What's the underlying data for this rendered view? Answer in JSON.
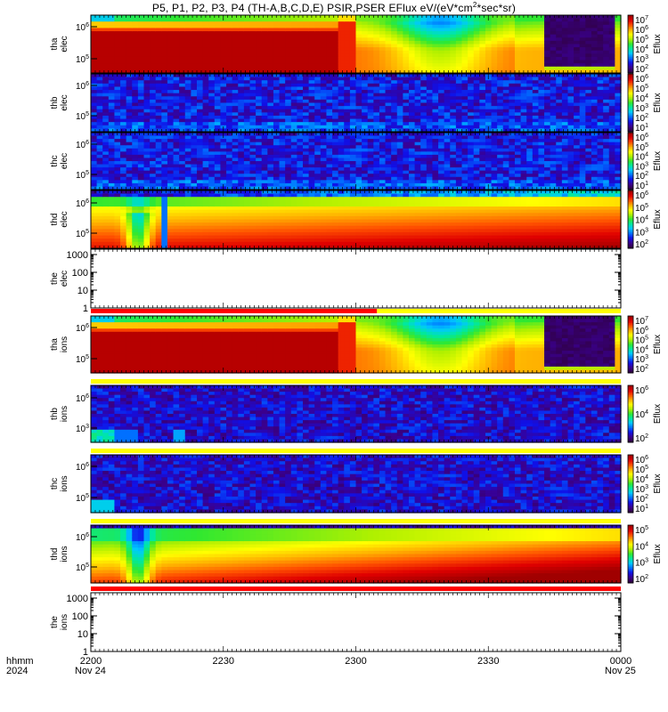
{
  "title": {
    "prefix": "P5, P1, P2, P3, P4 (TH-A,B,C,D,E) PSIR,PSER EFlux eV/(eV*cm",
    "sup": "2",
    "suffix": "*sec*sr)"
  },
  "footer": {
    "label_line1": "hhmm",
    "label_line2": "2024",
    "ticks": [
      "2200",
      "2230",
      "2300",
      "2330",
      "0000"
    ],
    "dates": [
      "Nov 24",
      "Nov 25"
    ]
  },
  "colors": {
    "spectrogram_scale": [
      "#300040",
      "#3a0090",
      "#1010e8",
      "#0070ff",
      "#00c8ff",
      "#00e8a0",
      "#30e830",
      "#b0f000",
      "#ffff00",
      "#ffb000",
      "#ff5000",
      "#e00000",
      "#a00000"
    ],
    "quality_flag_red": "#ff0000",
    "quality_flag_yellow": "#ffff00"
  },
  "chart_data": [
    {
      "type": "heatmap",
      "probe": "tha",
      "species": "elec",
      "ylabel": [
        "tha",
        "elec"
      ],
      "ytick_labels": [
        "10^6",
        "10^5"
      ],
      "ylog": true,
      "colorbar_label": "Eflux",
      "colorbar_ticks": [
        "10^7",
        "10^6",
        "10^5",
        "10^4",
        "10^3",
        "10^2"
      ],
      "x_start": "2200",
      "x_end": "0000",
      "features": [
        "high flux 2200-2258",
        "orange band 2258-2300",
        "dip near 2315",
        "flux drop-out 2344-2358"
      ]
    },
    {
      "type": "heatmap",
      "probe": "thb",
      "species": "elec",
      "ylabel": [
        "thb",
        "elec"
      ],
      "ytick_labels": [
        "10^6",
        "10^5"
      ],
      "ylog": true,
      "colorbar_label": "Eflux",
      "colorbar_ticks": [
        "10^6",
        "10^5",
        "10^4",
        "10^3",
        "10^2",
        "10^1"
      ],
      "features": [
        "low flux noise throughout"
      ]
    },
    {
      "type": "heatmap",
      "probe": "thc",
      "species": "elec",
      "ylabel": [
        "thc",
        "elec"
      ],
      "ytick_labels": [
        "10^6",
        "10^5"
      ],
      "ylog": true,
      "colorbar_label": "Eflux",
      "colorbar_ticks": [
        "10^6",
        "10^5",
        "10^4",
        "10^3",
        "10^2",
        "10^1"
      ],
      "features": [
        "low flux noise throughout"
      ]
    },
    {
      "type": "heatmap",
      "probe": "thd",
      "species": "elec",
      "ylabel": [
        "thd",
        "elec"
      ],
      "ytick_labels": [
        "10^6",
        "10^5"
      ],
      "ylog": true,
      "colorbar_label": "Eflux",
      "colorbar_ticks": [
        "10^6",
        "10^5",
        "10^4",
        "10^3",
        "10^2"
      ],
      "features": [
        "spikes near 2206 and 2209",
        "red band increasing toward 0000"
      ]
    },
    {
      "type": "line",
      "probe": "the",
      "species": "elec",
      "ylabel": [
        "the",
        "elec"
      ],
      "ytick_labels": [
        "1000",
        "100",
        "10",
        "1"
      ],
      "ylog": true,
      "series": [],
      "quality_flag": {
        "red_until": "2303",
        "then": "yellow"
      }
    },
    {
      "type": "heatmap",
      "probe": "tha",
      "species": "ions",
      "ylabel": [
        "tha",
        "ions"
      ],
      "ytick_labels": [
        "10^6",
        "10^5"
      ],
      "ylog": true,
      "colorbar_label": "Eflux",
      "colorbar_ticks": [
        "10^7",
        "10^6",
        "10^5",
        "10^4",
        "10^3",
        "10^2"
      ],
      "features": [
        "high flux 2200-2258",
        "dip near 2315",
        "flux drop-out 2344-2358"
      ]
    },
    {
      "type": "heatmap",
      "probe": "thb",
      "species": "ions",
      "ylabel": [
        "thb",
        "ions"
      ],
      "ytick_labels": [
        "10^6",
        "10^3"
      ],
      "ylog": true,
      "colorbar_label": "Eflux",
      "colorbar_ticks": [
        "10^6",
        "10^4",
        "10^2"
      ],
      "features": [
        "low-energy flux 2200-2212"
      ]
    },
    {
      "type": "heatmap",
      "probe": "thc",
      "species": "ions",
      "ylabel": [
        "thc",
        "ions"
      ],
      "ytick_labels": [
        "10^6",
        "10^5"
      ],
      "ylog": true,
      "colorbar_label": "Eflux",
      "colorbar_ticks": [
        "10^6",
        "10^5",
        "10^4",
        "10^3",
        "10^2",
        "10^1"
      ],
      "features": [
        "low-energy flux 2200-2208"
      ]
    },
    {
      "type": "heatmap",
      "probe": "thd",
      "species": "ions",
      "ylabel": [
        "thd",
        "ions"
      ],
      "ytick_labels": [
        "10^6",
        "10^5"
      ],
      "ylog": true,
      "colorbar_label": "Eflux",
      "colorbar_ticks": [
        "10^5",
        "10^4",
        "10^3",
        "10^2"
      ],
      "features": [
        "spikes near 2206 and 2209",
        "red band increasing toward 0000"
      ]
    },
    {
      "type": "line",
      "probe": "the",
      "species": "ions",
      "ylabel": [
        "the",
        "ions"
      ],
      "ytick_labels": [
        "1000",
        "100",
        "10",
        "1"
      ],
      "ylog": true,
      "series": [],
      "quality_flag": {
        "red_until": "0000",
        "then": "none"
      }
    }
  ]
}
